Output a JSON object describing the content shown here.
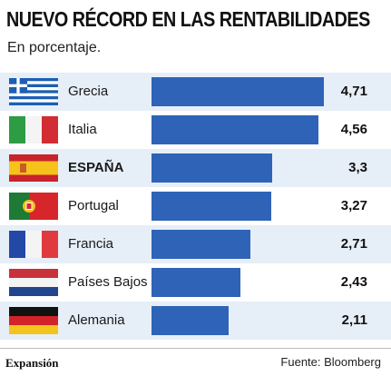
{
  "header": {
    "title": "NUEVO RÉCORD EN LAS RENTABILIDADES",
    "subtitle": "En porcentaje."
  },
  "footer": {
    "brand": "Expansión",
    "source": "Fuente: Bloomberg"
  },
  "colors": {
    "bar": "#2e63b8",
    "row_alt_background": "#e6eef7"
  },
  "chart_data": {
    "type": "bar",
    "orientation": "horizontal",
    "title": "NUEVO RÉCORD EN LAS RENTABILIDADES",
    "subtitle": "En porcentaje.",
    "categories": [
      "Grecia",
      "Italia",
      "ESPAÑA",
      "Portugal",
      "Francia",
      "Países Bajos",
      "Alemania"
    ],
    "values": [
      4.71,
      4.56,
      3.3,
      3.27,
      2.71,
      2.43,
      2.11
    ],
    "value_labels": [
      "4,71",
      "4,56",
      "3,3",
      "3,27",
      "2,71",
      "2,43",
      "2,11"
    ],
    "flags": [
      "greece-flag",
      "italy-flag",
      "spain-flag",
      "portugal-flag",
      "france-flag",
      "netherlands-flag",
      "germany-flag"
    ],
    "highlight": "ESPAÑA",
    "xlim": [
      0,
      5
    ],
    "grid": false,
    "legend": "none"
  }
}
